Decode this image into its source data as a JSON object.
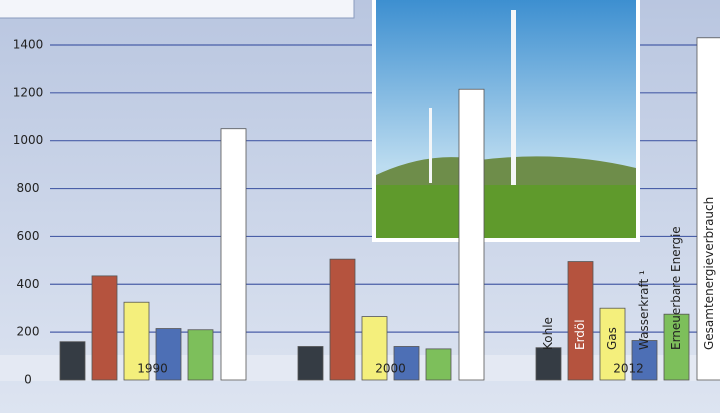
{
  "chart_data": {
    "type": "bar",
    "categories": [
      "1990",
      "2000",
      "2012"
    ],
    "series": [
      {
        "name": "Kohle",
        "color": "#353c44",
        "values": [
          160,
          140,
          135
        ]
      },
      {
        "name": "Erdöl",
        "color": "#b5533e",
        "values": [
          435,
          505,
          495
        ]
      },
      {
        "name": "Gas",
        "color": "#f4ef7c",
        "values": [
          325,
          265,
          300
        ]
      },
      {
        "name": "Wasserkraft ¹",
        "color": "#4d6fb5",
        "values": [
          215,
          140,
          165
        ]
      },
      {
        "name": "Erneuerbare Energie",
        "color": "#7dbf5b",
        "values": [
          210,
          130,
          275
        ]
      },
      {
        "name": "Gesamtenergieverbrauch",
        "color": "#ffffff",
        "values": [
          1050,
          1215,
          1430
        ]
      }
    ],
    "ylim": [
      0,
      1450
    ],
    "yticks": [
      0,
      200,
      400,
      600,
      800,
      1000,
      1200,
      1400
    ],
    "grid": true
  }
}
